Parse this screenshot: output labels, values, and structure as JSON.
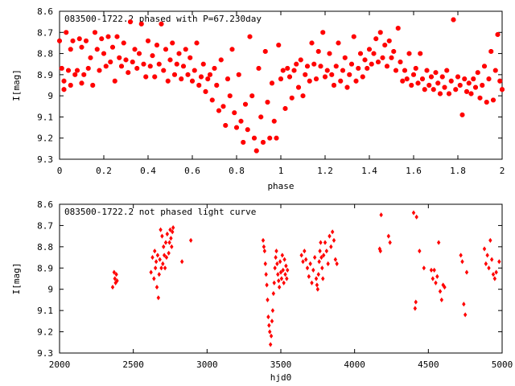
{
  "chart_data": [
    {
      "type": "scatter",
      "title": "083500-1722.2 phased with P=67.230day",
      "xlabel": "phase",
      "ylabel": "I[mag]",
      "xlim": [
        0,
        2
      ],
      "ylim": [
        9.3,
        8.6
      ],
      "y_inverted": true,
      "grid": false,
      "legend": "none",
      "color": "#ff0000",
      "xticks": [
        "0",
        "0.2",
        "0.4",
        "0.6",
        "0.8",
        "1",
        "1.2",
        "1.4",
        "1.6",
        "1.8",
        "2"
      ],
      "yticks": [
        "8.6",
        "8.7",
        "8.8",
        "8.9",
        "9",
        "9.1",
        "9.2",
        "9.3"
      ],
      "points": [
        [
          0.0,
          8.74
        ],
        [
          0.01,
          8.87
        ],
        [
          0.02,
          8.93
        ],
        [
          0.02,
          8.97
        ],
        [
          0.03,
          8.7
        ],
        [
          0.04,
          8.88
        ],
        [
          0.05,
          8.95
        ],
        [
          0.05,
          8.78
        ],
        [
          0.06,
          8.74
        ],
        [
          0.07,
          8.9
        ],
        [
          0.08,
          8.88
        ],
        [
          0.09,
          8.73
        ],
        [
          0.1,
          8.94
        ],
        [
          0.1,
          8.77
        ],
        [
          0.11,
          8.9
        ],
        [
          0.12,
          8.74
        ],
        [
          0.13,
          8.87
        ],
        [
          0.14,
          8.82
        ],
        [
          0.15,
          8.95
        ],
        [
          0.16,
          8.7
        ],
        [
          0.17,
          8.78
        ],
        [
          0.18,
          8.88
        ],
        [
          0.19,
          8.73
        ],
        [
          0.2,
          8.8
        ],
        [
          0.21,
          8.86
        ],
        [
          0.22,
          8.72
        ],
        [
          0.23,
          8.84
        ],
        [
          0.24,
          8.77
        ],
        [
          0.25,
          8.93
        ],
        [
          0.26,
          8.72
        ],
        [
          0.27,
          8.82
        ],
        [
          0.28,
          8.86
        ],
        [
          0.29,
          8.75
        ],
        [
          0.3,
          8.83
        ],
        [
          0.31,
          8.89
        ],
        [
          0.32,
          8.65
        ],
        [
          0.33,
          8.84
        ],
        [
          0.34,
          8.78
        ],
        [
          0.35,
          8.87
        ],
        [
          0.36,
          8.8
        ],
        [
          0.37,
          8.66
        ],
        [
          0.38,
          8.85
        ],
        [
          0.39,
          8.91
        ],
        [
          0.4,
          8.74
        ],
        [
          0.41,
          8.86
        ],
        [
          0.42,
          8.81
        ],
        [
          0.43,
          8.91
        ],
        [
          0.44,
          8.76
        ],
        [
          0.45,
          8.85
        ],
        [
          0.46,
          8.66
        ],
        [
          0.47,
          8.88
        ],
        [
          0.48,
          8.78
        ],
        [
          0.49,
          8.93
        ],
        [
          0.5,
          8.83
        ],
        [
          0.51,
          8.75
        ],
        [
          0.52,
          8.9
        ],
        [
          0.53,
          8.85
        ],
        [
          0.54,
          8.8
        ],
        [
          0.55,
          8.92
        ],
        [
          0.56,
          8.86
        ],
        [
          0.57,
          8.78
        ],
        [
          0.58,
          8.9
        ],
        [
          0.59,
          8.82
        ],
        [
          0.6,
          8.93
        ],
        [
          0.61,
          8.88
        ],
        [
          0.62,
          8.75
        ],
        [
          0.63,
          8.95
        ],
        [
          0.64,
          8.91
        ],
        [
          0.65,
          8.85
        ],
        [
          0.66,
          8.98
        ],
        [
          0.67,
          8.92
        ],
        [
          0.68,
          8.9
        ],
        [
          0.69,
          9.02
        ],
        [
          0.7,
          8.87
        ],
        [
          0.71,
          8.95
        ],
        [
          0.72,
          9.07
        ],
        [
          0.73,
          8.83
        ],
        [
          0.74,
          9.05
        ],
        [
          0.75,
          9.14
        ],
        [
          0.76,
          8.92
        ],
        [
          0.77,
          9.0
        ],
        [
          0.78,
          8.78
        ],
        [
          0.79,
          9.08
        ],
        [
          0.8,
          9.15
        ],
        [
          0.81,
          8.9
        ],
        [
          0.82,
          9.12
        ],
        [
          0.83,
          9.22
        ],
        [
          0.84,
          9.04
        ],
        [
          0.85,
          9.16
        ],
        [
          0.86,
          8.72
        ],
        [
          0.87,
          9.0
        ],
        [
          0.88,
          9.2
        ],
        [
          0.89,
          9.26
        ],
        [
          0.9,
          8.87
        ],
        [
          0.91,
          9.1
        ],
        [
          0.92,
          9.22
        ],
        [
          0.93,
          8.79
        ],
        [
          0.94,
          9.03
        ],
        [
          0.95,
          9.2
        ],
        [
          0.96,
          8.94
        ],
        [
          0.97,
          9.12
        ],
        [
          0.98,
          9.2
        ],
        [
          0.99,
          8.76
        ],
        [
          1.0,
          8.92
        ],
        [
          1.01,
          8.88
        ],
        [
          1.02,
          9.06
        ],
        [
          1.03,
          8.87
        ],
        [
          1.04,
          8.91
        ],
        [
          1.05,
          9.01
        ],
        [
          1.06,
          8.88
        ],
        [
          1.07,
          8.85
        ],
        [
          1.08,
          8.96
        ],
        [
          1.09,
          8.83
        ],
        [
          1.1,
          9.0
        ],
        [
          1.11,
          8.9
        ],
        [
          1.12,
          8.86
        ],
        [
          1.13,
          8.93
        ],
        [
          1.14,
          8.75
        ],
        [
          1.15,
          8.85
        ],
        [
          1.16,
          8.92
        ],
        [
          1.17,
          8.79
        ],
        [
          1.18,
          8.86
        ],
        [
          1.19,
          8.7
        ],
        [
          1.2,
          8.91
        ],
        [
          1.21,
          8.88
        ],
        [
          1.22,
          8.8
        ],
        [
          1.23,
          8.9
        ],
        [
          1.24,
          8.95
        ],
        [
          1.25,
          8.86
        ],
        [
          1.26,
          8.75
        ],
        [
          1.27,
          8.93
        ],
        [
          1.28,
          8.88
        ],
        [
          1.29,
          8.82
        ],
        [
          1.3,
          8.96
        ],
        [
          1.31,
          8.9
        ],
        [
          1.32,
          8.85
        ],
        [
          1.33,
          8.72
        ],
        [
          1.34,
          8.93
        ],
        [
          1.35,
          8.87
        ],
        [
          1.36,
          8.8
        ],
        [
          1.37,
          8.91
        ],
        [
          1.38,
          8.83
        ],
        [
          1.39,
          8.87
        ],
        [
          1.4,
          8.78
        ],
        [
          1.41,
          8.85
        ],
        [
          1.42,
          8.8
        ],
        [
          1.43,
          8.73
        ],
        [
          1.44,
          8.84
        ],
        [
          1.45,
          8.7
        ],
        [
          1.46,
          8.82
        ],
        [
          1.47,
          8.76
        ],
        [
          1.48,
          8.86
        ],
        [
          1.49,
          8.74
        ],
        [
          1.5,
          8.82
        ],
        [
          1.51,
          8.79
        ],
        [
          1.52,
          8.88
        ],
        [
          1.53,
          8.68
        ],
        [
          1.54,
          8.84
        ],
        [
          1.55,
          8.93
        ],
        [
          1.56,
          8.88
        ],
        [
          1.57,
          8.92
        ],
        [
          1.58,
          8.8
        ],
        [
          1.59,
          8.95
        ],
        [
          1.6,
          8.9
        ],
        [
          1.61,
          8.87
        ],
        [
          1.62,
          8.94
        ],
        [
          1.63,
          8.8
        ],
        [
          1.64,
          8.92
        ],
        [
          1.65,
          8.97
        ],
        [
          1.66,
          8.88
        ],
        [
          1.67,
          8.95
        ],
        [
          1.68,
          8.91
        ],
        [
          1.69,
          8.97
        ],
        [
          1.7,
          8.89
        ],
        [
          1.71,
          8.94
        ],
        [
          1.72,
          8.99
        ],
        [
          1.73,
          8.91
        ],
        [
          1.74,
          8.96
        ],
        [
          1.75,
          8.88
        ],
        [
          1.76,
          8.99
        ],
        [
          1.77,
          8.93
        ],
        [
          1.78,
          8.64
        ],
        [
          1.79,
          8.97
        ],
        [
          1.8,
          8.91
        ],
        [
          1.81,
          8.95
        ],
        [
          1.82,
          9.09
        ],
        [
          1.83,
          8.92
        ],
        [
          1.84,
          8.98
        ],
        [
          1.85,
          8.94
        ],
        [
          1.86,
          8.99
        ],
        [
          1.87,
          8.92
        ],
        [
          1.88,
          8.96
        ],
        [
          1.89,
          8.89
        ],
        [
          1.9,
          9.01
        ],
        [
          1.91,
          8.95
        ],
        [
          1.92,
          8.86
        ],
        [
          1.93,
          9.03
        ],
        [
          1.94,
          8.92
        ],
        [
          1.95,
          8.79
        ],
        [
          1.96,
          9.02
        ],
        [
          1.97,
          8.88
        ],
        [
          1.98,
          8.71
        ],
        [
          1.99,
          8.93
        ],
        [
          2.0,
          8.97
        ]
      ]
    },
    {
      "type": "scatter",
      "title": "083500-1722.2 not phased light curve",
      "xlabel": "hjd0",
      "ylabel": "I[mag]",
      "xlim": [
        2000,
        5000
      ],
      "ylim": [
        9.3,
        8.6
      ],
      "y_inverted": true,
      "grid": false,
      "legend": "none",
      "color": "#ff0000",
      "xticks": [
        "2000",
        "2500",
        "3000",
        "3500",
        "4000",
        "4500",
        "5000"
      ],
      "yticks": [
        "8.6",
        "8.7",
        "8.8",
        "8.9",
        "9",
        "9.1",
        "9.2",
        "9.3"
      ],
      "points": [
        [
          2360,
          8.99
        ],
        [
          2370,
          8.92
        ],
        [
          2375,
          8.95
        ],
        [
          2380,
          8.97
        ],
        [
          2385,
          8.93
        ],
        [
          2390,
          8.96
        ],
        [
          2620,
          8.92
        ],
        [
          2630,
          8.85
        ],
        [
          2640,
          8.95
        ],
        [
          2645,
          8.82
        ],
        [
          2650,
          8.9
        ],
        [
          2655,
          8.87
        ],
        [
          2660,
          8.99
        ],
        [
          2665,
          8.84
        ],
        [
          2670,
          9.04
        ],
        [
          2675,
          8.93
        ],
        [
          2680,
          8.86
        ],
        [
          2685,
          8.72
        ],
        [
          2690,
          8.9
        ],
        [
          2695,
          8.75
        ],
        [
          2700,
          8.88
        ],
        [
          2705,
          8.8
        ],
        [
          2710,
          8.84
        ],
        [
          2715,
          8.9
        ],
        [
          2720,
          8.78
        ],
        [
          2725,
          8.85
        ],
        [
          2730,
          8.74
        ],
        [
          2740,
          8.83
        ],
        [
          2745,
          8.78
        ],
        [
          2750,
          8.72
        ],
        [
          2755,
          8.76
        ],
        [
          2760,
          8.8
        ],
        [
          2765,
          8.73
        ],
        [
          2770,
          8.71
        ],
        [
          2830,
          8.87
        ],
        [
          2890,
          8.77
        ],
        [
          3380,
          8.77
        ],
        [
          3385,
          8.8
        ],
        [
          3390,
          8.82
        ],
        [
          3395,
          8.88
        ],
        [
          3400,
          8.93
        ],
        [
          3405,
          8.98
        ],
        [
          3410,
          9.05
        ],
        [
          3415,
          9.13
        ],
        [
          3420,
          9.17
        ],
        [
          3425,
          9.2
        ],
        [
          3430,
          9.26
        ],
        [
          3435,
          9.22
        ],
        [
          3440,
          9.15
        ],
        [
          3445,
          9.1
        ],
        [
          3450,
          9.02
        ],
        [
          3455,
          8.97
        ],
        [
          3460,
          8.9
        ],
        [
          3465,
          8.85
        ],
        [
          3470,
          8.82
        ],
        [
          3475,
          8.88
        ],
        [
          3480,
          8.93
        ],
        [
          3485,
          8.96
        ],
        [
          3490,
          8.99
        ],
        [
          3495,
          8.87
        ],
        [
          3500,
          8.92
        ],
        [
          3505,
          8.95
        ],
        [
          3510,
          8.84
        ],
        [
          3515,
          8.91
        ],
        [
          3520,
          8.97
        ],
        [
          3525,
          8.86
        ],
        [
          3530,
          8.93
        ],
        [
          3535,
          8.89
        ],
        [
          3540,
          8.95
        ],
        [
          3545,
          8.91
        ],
        [
          3640,
          8.84
        ],
        [
          3650,
          8.87
        ],
        [
          3660,
          8.82
        ],
        [
          3670,
          8.86
        ],
        [
          3680,
          8.9
        ],
        [
          3690,
          8.94
        ],
        [
          3700,
          8.88
        ],
        [
          3710,
          8.97
        ],
        [
          3720,
          8.91
        ],
        [
          3730,
          8.85
        ],
        [
          3740,
          8.95
        ],
        [
          3745,
          8.98
        ],
        [
          3750,
          9.0
        ],
        [
          3755,
          8.93
        ],
        [
          3760,
          8.87
        ],
        [
          3765,
          8.82
        ],
        [
          3770,
          8.78
        ],
        [
          3775,
          8.85
        ],
        [
          3780,
          8.9
        ],
        [
          3785,
          8.95
        ],
        [
          3790,
          8.84
        ],
        [
          3800,
          8.78
        ],
        [
          3810,
          8.82
        ],
        [
          3820,
          8.88
        ],
        [
          3830,
          8.75
        ],
        [
          3840,
          8.8
        ],
        [
          3850,
          8.73
        ],
        [
          3860,
          8.77
        ],
        [
          3870,
          8.86
        ],
        [
          3880,
          8.88
        ],
        [
          4170,
          8.81
        ],
        [
          4175,
          8.82
        ],
        [
          4180,
          8.65
        ],
        [
          4230,
          8.75
        ],
        [
          4240,
          8.78
        ],
        [
          4400,
          8.64
        ],
        [
          4410,
          9.09
        ],
        [
          4415,
          9.06
        ],
        [
          4420,
          8.66
        ],
        [
          4440,
          8.82
        ],
        [
          4470,
          8.9
        ],
        [
          4520,
          8.91
        ],
        [
          4530,
          8.95
        ],
        [
          4540,
          8.91
        ],
        [
          4550,
          8.97
        ],
        [
          4560,
          8.94
        ],
        [
          4570,
          8.78
        ],
        [
          4580,
          9.01
        ],
        [
          4590,
          9.05
        ],
        [
          4600,
          8.98
        ],
        [
          4610,
          8.99
        ],
        [
          4720,
          8.84
        ],
        [
          4730,
          8.87
        ],
        [
          4740,
          9.07
        ],
        [
          4750,
          9.12
        ],
        [
          4760,
          8.92
        ],
        [
          4880,
          8.81
        ],
        [
          4890,
          8.88
        ],
        [
          4900,
          8.84
        ],
        [
          4910,
          8.9
        ],
        [
          4920,
          8.77
        ],
        [
          4930,
          8.86
        ],
        [
          4940,
          8.93
        ],
        [
          4950,
          8.95
        ],
        [
          4960,
          8.92
        ],
        [
          4980,
          8.87
        ]
      ]
    }
  ]
}
